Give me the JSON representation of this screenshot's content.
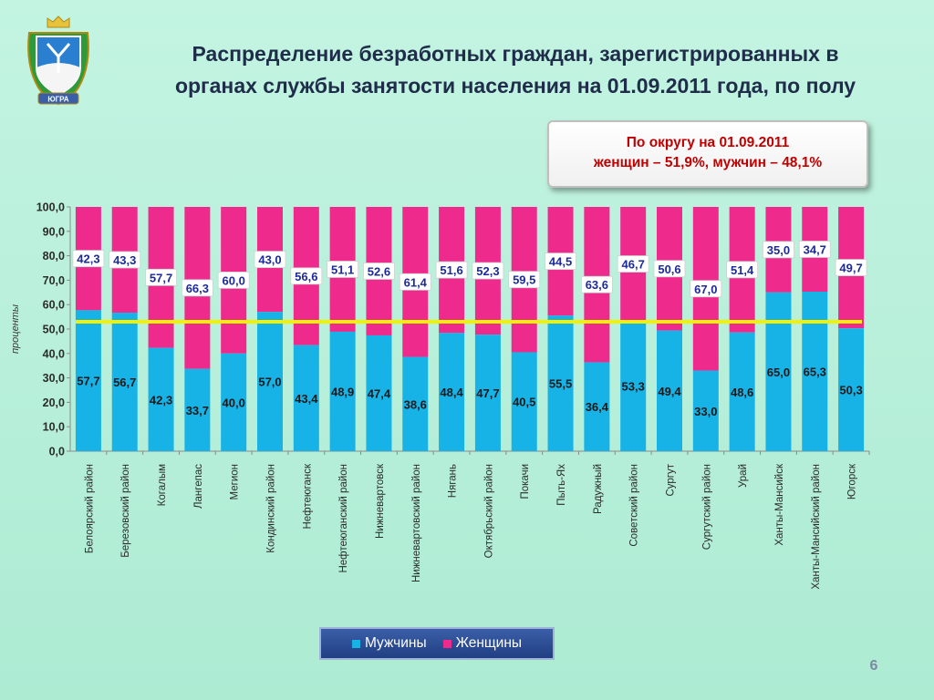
{
  "title_line1": "Распределение безработных граждан, зарегистрированных в",
  "title_line2": "органах службы занятости населения на 01.09.2011 года, по полу",
  "callout": {
    "line1": "По округу на 01.09.2011",
    "line2": "женщин – 51,9%, мужчин – 48,1%"
  },
  "page_number": "6",
  "colors": {
    "men": "#17b2e6",
    "women": "#ee2b8c",
    "reference_line": "#f2f200",
    "value_label_text": "#1c2a9a"
  },
  "emblem": {
    "icon": "coat-of-arms-icon",
    "ribbon_text": "ЮГРА"
  },
  "chart_data": {
    "type": "bar",
    "stacked": true,
    "ylabel": "проценты",
    "xlabel": "",
    "ylim": [
      0,
      100
    ],
    "yticks": [
      "0,0",
      "10,0",
      "20,0",
      "30,0",
      "40,0",
      "50,0",
      "60,0",
      "70,0",
      "80,0",
      "90,0",
      "100,0"
    ],
    "grid": false,
    "reference_line": 53,
    "legend_position": "bottom",
    "categories": [
      "Белоярский район",
      "Березовский район",
      "Когалым",
      "Лангепас",
      "Мегион",
      "Кондинский район",
      "Нефтеюганск",
      "Нефтеюганский район",
      "Нижневартовск",
      "Нижневартовский район",
      "Нягань",
      "Октябрьский район",
      "Покачи",
      "Пыть-Ях",
      "Радужный",
      "Советский район",
      "Сургут",
      "Сургутский район",
      "Урай",
      "Ханты-Мансийск",
      "Ханты-Мансийский район",
      "Югорск"
    ],
    "series": [
      {
        "name": "Мужчины",
        "values": [
          57.7,
          56.7,
          42.3,
          33.7,
          40.0,
          57.0,
          43.4,
          48.9,
          47.4,
          38.6,
          48.4,
          47.7,
          40.5,
          55.5,
          36.4,
          53.3,
          49.4,
          33.0,
          48.6,
          65.0,
          65.3,
          50.3
        ],
        "labels": [
          "57,7",
          "56,7",
          "42,3",
          "33,7",
          "40,0",
          "57,0",
          "43,4",
          "48,9",
          "47,4",
          "38,6",
          "48,4",
          "47,7",
          "40,5",
          "55,5",
          "36,4",
          "53,3",
          "49,4",
          "33,0",
          "48,6",
          "65,0",
          "65,3",
          "50,3"
        ]
      },
      {
        "name": "Женщины",
        "values": [
          42.3,
          43.3,
          57.7,
          66.3,
          60.0,
          43.0,
          56.6,
          51.1,
          52.6,
          61.4,
          51.6,
          52.3,
          59.5,
          44.5,
          63.6,
          46.7,
          50.6,
          67.0,
          51.4,
          35.0,
          34.7,
          49.7
        ],
        "labels": [
          "42,3",
          "43,3",
          "57,7",
          "66,3",
          "60,0",
          "43,0",
          "56,6",
          "51,1",
          "52,6",
          "61,4",
          "51,6",
          "52,3",
          "59,5",
          "44,5",
          "63,6",
          "46,7",
          "50,6",
          "67,0",
          "51,4",
          "35,0",
          "34,7",
          "49,7"
        ]
      }
    ]
  }
}
